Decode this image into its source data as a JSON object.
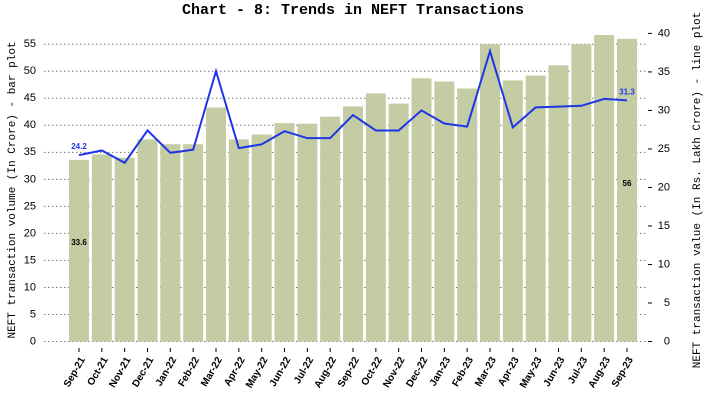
{
  "chart_data": {
    "type": "bar",
    "title": "Chart - 8: Trends in NEFT Transactions",
    "y_label": "NEFT transaction volume (In Crore) - bar plot",
    "y2_label": "NEFT transaction value (In Rs. Lakh Crore) - line plot",
    "categories": [
      "Sep-21",
      "Oct-21",
      "Nov-21",
      "Dec-21",
      "Jan-22",
      "Feb-22",
      "Mar-22",
      "Apr-22",
      "May-22",
      "Jun-22",
      "Jul-22",
      "Aug-22",
      "Sep-22",
      "Oct-22",
      "Nov-22",
      "Dec-22",
      "Jan-23",
      "Feb-23",
      "Mar-23",
      "Apr-23",
      "May-23",
      "Jun-23",
      "Jul-23",
      "Aug-23",
      "Sep-23"
    ],
    "series": [
      {
        "type": "bar",
        "color": "#c3cca3",
        "values": [
          33.6,
          34.6,
          34.0,
          37.4,
          36.5,
          36.5,
          43.3,
          37.4,
          38.3,
          40.4,
          40.3,
          41.6,
          43.5,
          45.9,
          44.0,
          48.7,
          48.1,
          46.8,
          55.0,
          48.3,
          49.2,
          51.1,
          55.0,
          56.7,
          56
        ]
      },
      {
        "type": "line",
        "axis": "y2",
        "color": "#1f35e6",
        "values": [
          24.2,
          24.8,
          23.2,
          27.4,
          24.5,
          24.9,
          35.1,
          25.1,
          25.6,
          27.3,
          26.4,
          26.4,
          29.4,
          27.4,
          27.4,
          30.0,
          28.3,
          27.9,
          37.7,
          27.8,
          30.4,
          30.5,
          30.6,
          31.5,
          31.3
        ]
      }
    ],
    "ylim": [
      -1.2,
      58
    ],
    "yticks": [
      0,
      5,
      10,
      15,
      20,
      25,
      30,
      35,
      40,
      45,
      50,
      55
    ],
    "y2lim": [
      -0.84,
      40.7
    ],
    "y2ticks": [
      0,
      5,
      10,
      15,
      20,
      25,
      30,
      35,
      40
    ],
    "grid": true
  }
}
